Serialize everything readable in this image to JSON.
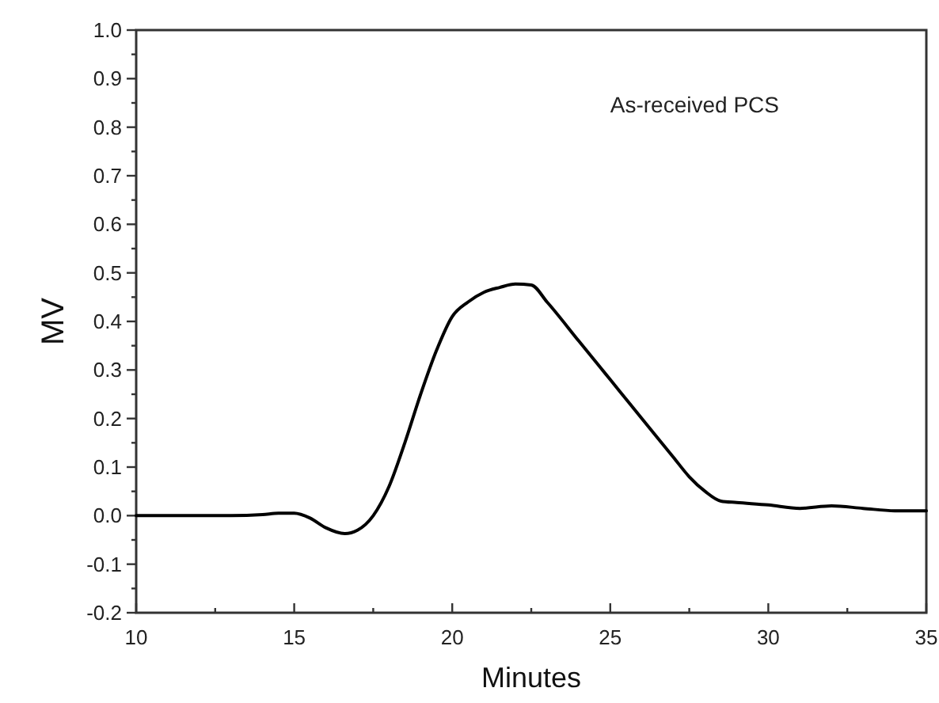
{
  "chart_data": {
    "type": "line",
    "xlabel": "Minutes",
    "ylabel": "MV",
    "annotations": [
      "As-received PCS"
    ],
    "xlim": [
      10,
      35
    ],
    "ylim": [
      -0.2,
      1.0
    ],
    "xticks": [
      10,
      {
        "value": 12.5,
        "label": null
      },
      15,
      {
        "value": 17.5,
        "label": null
      },
      20,
      {
        "value": 22.5,
        "label": null
      },
      25,
      {
        "value": 27.5,
        "label": null
      },
      30,
      {
        "value": 32.5,
        "label": null
      },
      35
    ],
    "yticks": [
      -0.2,
      {
        "value": -0.15,
        "label": null
      },
      -0.1,
      {
        "value": -0.05,
        "label": null
      },
      "0.0",
      {
        "value": 0.05,
        "label": null
      },
      0.1,
      {
        "value": 0.15,
        "label": null
      },
      0.2,
      {
        "value": 0.25,
        "label": null
      },
      0.3,
      {
        "value": 0.35,
        "label": null
      },
      0.4,
      {
        "value": 0.45,
        "label": null
      },
      0.5,
      {
        "value": 0.55,
        "label": null
      },
      0.6,
      {
        "value": 0.65,
        "label": null
      },
      0.7,
      {
        "value": 0.75,
        "label": null
      },
      0.8,
      {
        "value": 0.85,
        "label": null
      },
      0.9,
      {
        "value": 0.95,
        "label": null
      },
      {
        "value": 1.0,
        "label": "1.0"
      }
    ],
    "grid": false,
    "marker": "none",
    "line_style": "solid",
    "x": [
      10,
      11,
      12,
      13,
      14,
      14.5,
      15,
      15.5,
      16,
      16.6,
      17,
      17.5,
      18,
      18.5,
      19,
      19.5,
      20,
      20.5,
      21,
      21.5,
      22,
      22.5,
      23,
      24,
      25,
      26,
      27,
      27.5,
      28,
      28.5,
      29,
      30,
      31,
      32,
      33,
      34,
      35
    ],
    "series": [
      {
        "color": "#000000",
        "values": [
          0,
          0,
          0,
          0,
          0.002,
          0.005,
          0.005,
          -0.005,
          -0.025,
          -0.037,
          -0.03,
          0,
          0.06,
          0.15,
          0.25,
          0.34,
          0.41,
          0.44,
          0.46,
          0.47,
          0.477,
          0.475,
          0.44,
          0.36,
          0.28,
          0.2,
          0.12,
          0.08,
          0.05,
          0.03,
          0.027,
          0.022,
          0.015,
          0.02,
          0.015,
          0.01,
          0.01
        ]
      }
    ]
  }
}
